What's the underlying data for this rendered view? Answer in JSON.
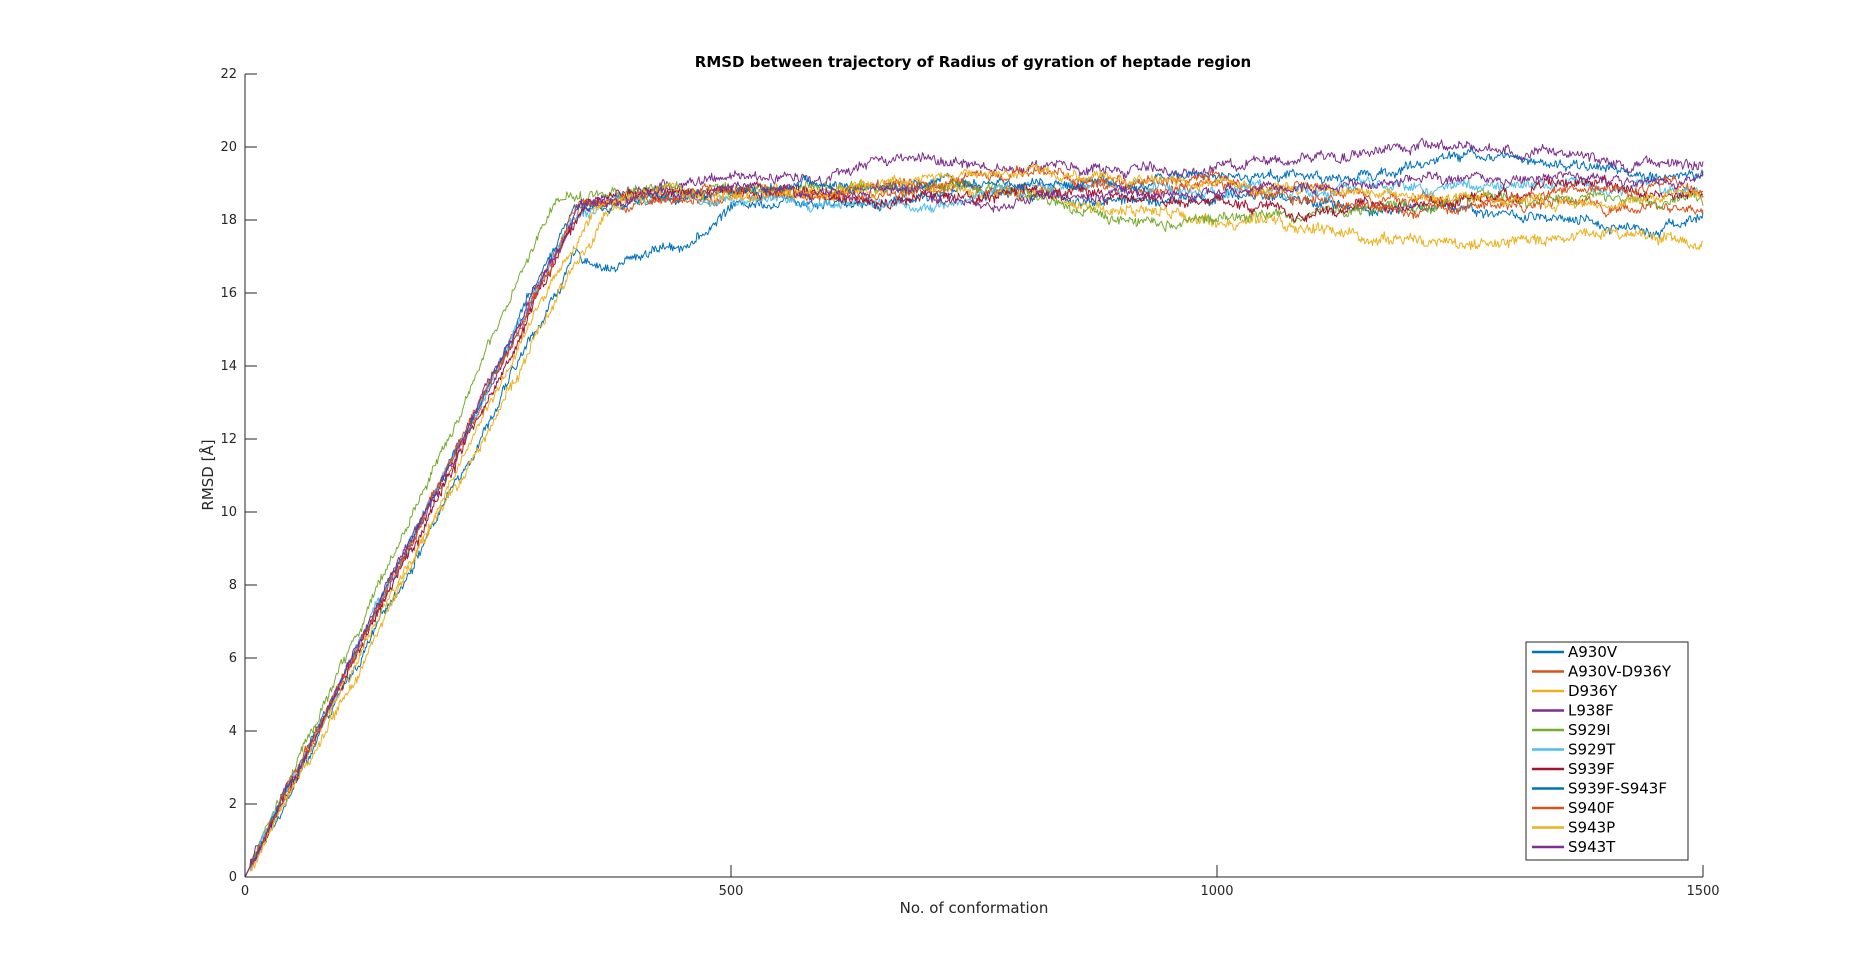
{
  "chart_data": {
    "type": "line",
    "title": "RMSD between trajectory of Radius of gyration of heptade region",
    "xlabel": "No. of conformation",
    "ylabel": "RMSD [Å]",
    "xlim": [
      0,
      1500
    ],
    "ylim": [
      0,
      22
    ],
    "xticks": [
      0,
      500,
      1000,
      1500
    ],
    "yticks": [
      0,
      2,
      4,
      6,
      8,
      10,
      12,
      14,
      16,
      18,
      20,
      22
    ],
    "grid": false,
    "legend_position": "bottom-right",
    "series": [
      {
        "name": "A930V",
        "color": "#0072BD",
        "noise": 0.1,
        "points": [
          [
            0,
            0
          ],
          [
            340,
            17.0
          ],
          [
            380,
            16.7
          ],
          [
            420,
            17.2
          ],
          [
            470,
            17.5
          ],
          [
            500,
            18.4
          ],
          [
            560,
            18.6
          ],
          [
            650,
            18.5
          ],
          [
            750,
            18.9
          ],
          [
            850,
            18.6
          ],
          [
            950,
            18.5
          ],
          [
            1050,
            18.7
          ],
          [
            1150,
            18.3
          ],
          [
            1250,
            18.4
          ],
          [
            1350,
            17.9
          ],
          [
            1450,
            17.8
          ],
          [
            1500,
            18.1
          ]
        ]
      },
      {
        "name": "A930V-D936Y",
        "color": "#D95319",
        "noise": 0.09,
        "points": [
          [
            0,
            0
          ],
          [
            345,
            18.5
          ],
          [
            400,
            18.5
          ],
          [
            500,
            18.6
          ],
          [
            600,
            18.6
          ],
          [
            700,
            18.8
          ],
          [
            800,
            18.9
          ],
          [
            900,
            18.8
          ],
          [
            1000,
            18.9
          ],
          [
            1100,
            18.9
          ],
          [
            1200,
            18.6
          ],
          [
            1300,
            18.5
          ],
          [
            1400,
            18.4
          ],
          [
            1500,
            18.3
          ]
        ]
      },
      {
        "name": "D936Y",
        "color": "#EDB120",
        "noise": 0.12,
        "points": [
          [
            0,
            0
          ],
          [
            370,
            18.2
          ],
          [
            420,
            18.7
          ],
          [
            500,
            18.7
          ],
          [
            600,
            18.8
          ],
          [
            700,
            18.9
          ],
          [
            800,
            18.7
          ],
          [
            900,
            18.3
          ],
          [
            1000,
            18.0
          ],
          [
            1080,
            17.8
          ],
          [
            1160,
            17.5
          ],
          [
            1240,
            17.4
          ],
          [
            1300,
            17.3
          ],
          [
            1360,
            17.6
          ],
          [
            1420,
            17.7
          ],
          [
            1500,
            17.4
          ]
        ]
      },
      {
        "name": "L938F",
        "color": "#7E2F8E",
        "noise": 0.1,
        "points": [
          [
            0,
            0
          ],
          [
            345,
            18.4
          ],
          [
            420,
            18.9
          ],
          [
            500,
            19.1
          ],
          [
            600,
            19.2
          ],
          [
            680,
            19.7
          ],
          [
            720,
            19.5
          ],
          [
            800,
            19.5
          ],
          [
            900,
            19.3
          ],
          [
            1000,
            19.4
          ],
          [
            1100,
            19.7
          ],
          [
            1160,
            20.0
          ],
          [
            1250,
            19.9
          ],
          [
            1350,
            19.8
          ],
          [
            1420,
            19.6
          ],
          [
            1500,
            19.5
          ]
        ]
      },
      {
        "name": "S929I",
        "color": "#77AC30",
        "noise": 0.1,
        "points": [
          [
            0,
            0
          ],
          [
            320,
            18.5
          ],
          [
            380,
            18.8
          ],
          [
            460,
            18.8
          ],
          [
            560,
            18.9
          ],
          [
            650,
            18.9
          ],
          [
            760,
            18.9
          ],
          [
            800,
            18.8
          ],
          [
            860,
            18.2
          ],
          [
            900,
            18.1
          ],
          [
            960,
            18.0
          ],
          [
            1050,
            18.1
          ],
          [
            1150,
            18.3
          ],
          [
            1250,
            18.5
          ],
          [
            1350,
            18.8
          ],
          [
            1420,
            18.5
          ],
          [
            1500,
            18.6
          ]
        ]
      },
      {
        "name": "S929T",
        "color": "#4DBEEE",
        "noise": 0.1,
        "points": [
          [
            0,
            0
          ],
          [
            340,
            18.3
          ],
          [
            420,
            18.6
          ],
          [
            500,
            18.6
          ],
          [
            600,
            18.5
          ],
          [
            680,
            18.4
          ],
          [
            760,
            18.7
          ],
          [
            850,
            18.8
          ],
          [
            950,
            18.9
          ],
          [
            1050,
            18.7
          ],
          [
            1150,
            18.9
          ],
          [
            1250,
            18.9
          ],
          [
            1350,
            19.0
          ],
          [
            1420,
            18.8
          ],
          [
            1500,
            18.8
          ]
        ]
      },
      {
        "name": "S939F",
        "color": "#A2142F",
        "noise": 0.11,
        "points": [
          [
            0,
            0
          ],
          [
            350,
            18.5
          ],
          [
            420,
            18.6
          ],
          [
            500,
            18.7
          ],
          [
            600,
            18.7
          ],
          [
            700,
            18.6
          ],
          [
            750,
            18.5
          ],
          [
            800,
            18.8
          ],
          [
            900,
            18.7
          ],
          [
            1000,
            18.5
          ],
          [
            1100,
            18.2
          ],
          [
            1200,
            18.4
          ],
          [
            1280,
            18.6
          ],
          [
            1350,
            18.9
          ],
          [
            1420,
            18.8
          ],
          [
            1500,
            18.6
          ]
        ]
      },
      {
        "name": "S939F-S943F",
        "color": "#0072BD",
        "noise": 0.09,
        "points": [
          [
            0,
            0
          ],
          [
            340,
            18.4
          ],
          [
            420,
            18.6
          ],
          [
            500,
            18.8
          ],
          [
            600,
            18.9
          ],
          [
            700,
            19.0
          ],
          [
            800,
            19.0
          ],
          [
            900,
            19.0
          ],
          [
            1000,
            19.1
          ],
          [
            1100,
            19.2
          ],
          [
            1200,
            19.4
          ],
          [
            1260,
            19.8
          ],
          [
            1300,
            19.7
          ],
          [
            1380,
            19.5
          ],
          [
            1440,
            19.3
          ],
          [
            1500,
            19.2
          ]
        ]
      },
      {
        "name": "S940F",
        "color": "#D95319",
        "noise": 0.1,
        "points": [
          [
            0,
            0
          ],
          [
            345,
            18.5
          ],
          [
            420,
            18.7
          ],
          [
            500,
            18.8
          ],
          [
            600,
            18.8
          ],
          [
            700,
            19.0
          ],
          [
            800,
            19.2
          ],
          [
            900,
            19.1
          ],
          [
            1000,
            19.1
          ],
          [
            1050,
            18.6
          ],
          [
            1120,
            18.4
          ],
          [
            1200,
            18.2
          ],
          [
            1300,
            18.4
          ],
          [
            1380,
            18.8
          ],
          [
            1440,
            19.0
          ],
          [
            1500,
            19.1
          ]
        ]
      },
      {
        "name": "S943P",
        "color": "#EDB120",
        "noise": 0.09,
        "points": [
          [
            0,
            0
          ],
          [
            360,
            18.4
          ],
          [
            420,
            18.7
          ],
          [
            500,
            18.7
          ],
          [
            600,
            18.9
          ],
          [
            700,
            19.1
          ],
          [
            800,
            19.3
          ],
          [
            900,
            19.1
          ],
          [
            1000,
            19.0
          ],
          [
            1100,
            18.8
          ],
          [
            1200,
            18.7
          ],
          [
            1300,
            18.6
          ],
          [
            1400,
            18.5
          ],
          [
            1500,
            18.6
          ]
        ]
      },
      {
        "name": "S943T",
        "color": "#7E2F8E",
        "noise": 0.09,
        "points": [
          [
            0,
            0
          ],
          [
            345,
            18.5
          ],
          [
            420,
            18.8
          ],
          [
            500,
            18.9
          ],
          [
            600,
            18.7
          ],
          [
            700,
            18.8
          ],
          [
            770,
            18.4
          ],
          [
            850,
            18.7
          ],
          [
            950,
            18.6
          ],
          [
            1050,
            18.8
          ],
          [
            1150,
            19.0
          ],
          [
            1250,
            19.1
          ],
          [
            1350,
            19.2
          ],
          [
            1420,
            19.1
          ],
          [
            1500,
            19.3
          ]
        ]
      }
    ]
  }
}
